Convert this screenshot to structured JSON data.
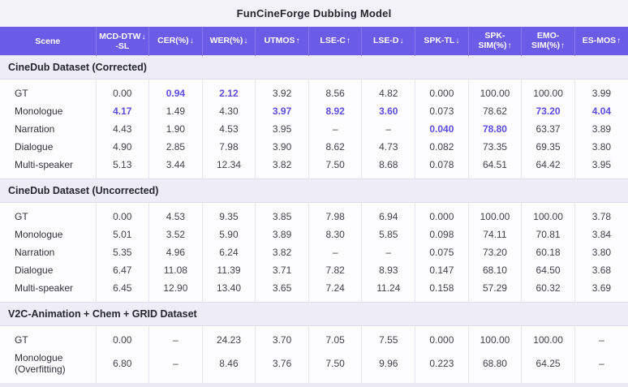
{
  "title": "FunCineForge Dubbing Model",
  "colors": {
    "header_bg": "#6B5CE8",
    "header_separator": "#8578EE",
    "header_text": "#FFFFFF",
    "accent_highlight": "#5C4CE2",
    "section_band_bg": "#EEEDF5",
    "title_bar_bg": "#F3F2F8",
    "body_text": "#41414C",
    "cell_bg": "#FDFDFF",
    "column_separator": "#E9E7F3",
    "page_bg": "#ECEBF5"
  },
  "chart_data": {
    "type": "table",
    "title": "FunCineForge Dubbing Model",
    "legend_note": "down arrow = lower is better, up arrow = higher is better; bold purple values = best/highlighted results",
    "columns": [
      {
        "id": "scene",
        "label": "Scene",
        "sub": "",
        "arrow": ""
      },
      {
        "id": "mcd-dtw-sl",
        "label": "MCD-DTW",
        "sub": "-SL",
        "arrow": "↓"
      },
      {
        "id": "cer",
        "label": "CER(%)",
        "sub": "",
        "arrow": "↓"
      },
      {
        "id": "wer",
        "label": "WER(%)",
        "sub": "",
        "arrow": "↓"
      },
      {
        "id": "utmos",
        "label": "UTMOS",
        "sub": "",
        "arrow": "↑"
      },
      {
        "id": "lse-c",
        "label": "LSE-C",
        "sub": "",
        "arrow": "↑"
      },
      {
        "id": "lse-d",
        "label": "LSE-D",
        "sub": "",
        "arrow": "↓"
      },
      {
        "id": "spk-tl",
        "label": "SPK-TL",
        "sub": "",
        "arrow": "↓"
      },
      {
        "id": "spk-sim",
        "label": "SPK-SIM(%)",
        "sub": "",
        "arrow": "↑"
      },
      {
        "id": "emo-sim",
        "label": "EMO-SIM(%)",
        "sub": "",
        "arrow": "↑"
      },
      {
        "id": "es-mos",
        "label": "ES-MOS",
        "sub": "",
        "arrow": "↑"
      }
    ],
    "sections": [
      {
        "header": "CineDub Dataset (Corrected)",
        "rows": [
          {
            "scene": "GT",
            "values": [
              "0.00",
              "0.94",
              "2.12",
              "3.92",
              "8.56",
              "4.82",
              "0.000",
              "100.00",
              "100.00",
              "3.99"
            ],
            "bold": [
              1,
              2
            ]
          },
          {
            "scene": "Monologue",
            "values": [
              "4.17",
              "1.49",
              "4.30",
              "3.97",
              "8.92",
              "3.60",
              "0.073",
              "78.62",
              "73.20",
              "4.04"
            ],
            "bold": [
              0,
              3,
              4,
              5,
              8,
              9
            ]
          },
          {
            "scene": "Narration",
            "values": [
              "4.43",
              "1.90",
              "4.53",
              "3.95",
              "–",
              "–",
              "0.040",
              "78.80",
              "63.37",
              "3.89"
            ],
            "bold": [
              6,
              7
            ]
          },
          {
            "scene": "Dialogue",
            "values": [
              "4.90",
              "2.85",
              "7.98",
              "3.90",
              "8.62",
              "4.73",
              "0.082",
              "73.35",
              "69.35",
              "3.80"
            ],
            "bold": []
          },
          {
            "scene": "Multi-speaker",
            "values": [
              "5.13",
              "3.44",
              "12.34",
              "3.82",
              "7.50",
              "8.68",
              "0.078",
              "64.51",
              "64.42",
              "3.95"
            ],
            "bold": []
          }
        ]
      },
      {
        "header": "CineDub Dataset (Uncorrected)",
        "rows": [
          {
            "scene": "GT",
            "values": [
              "0.00",
              "4.53",
              "9.35",
              "3.85",
              "7.98",
              "6.94",
              "0.000",
              "100.00",
              "100.00",
              "3.78"
            ],
            "bold": []
          },
          {
            "scene": "Monologue",
            "values": [
              "5.01",
              "3.52",
              "5.90",
              "3.89",
              "8.30",
              "5.85",
              "0.098",
              "74.11",
              "70.81",
              "3.84"
            ],
            "bold": []
          },
          {
            "scene": "Narration",
            "values": [
              "5.35",
              "4.96",
              "6.24",
              "3.82",
              "–",
              "–",
              "0.075",
              "73.20",
              "60.18",
              "3.80"
            ],
            "bold": []
          },
          {
            "scene": "Dialogue",
            "values": [
              "6.47",
              "11.08",
              "11.39",
              "3.71",
              "7.82",
              "8.93",
              "0.147",
              "68.10",
              "64.50",
              "3.68"
            ],
            "bold": []
          },
          {
            "scene": "Multi-speaker",
            "values": [
              "6.45",
              "12.90",
              "13.40",
              "3.65",
              "7.24",
              "11.24",
              "0.158",
              "57.29",
              "60.32",
              "3.69"
            ],
            "bold": []
          }
        ]
      },
      {
        "header": "V2C-Animation + Chem + GRID Dataset",
        "rows": [
          {
            "scene": "GT",
            "values": [
              "0.00",
              "–",
              "24.23",
              "3.70",
              "7.05",
              "7.55",
              "0.000",
              "100.00",
              "100.00",
              "–"
            ],
            "bold": []
          },
          {
            "scene": "Monologue (Overfitting)",
            "values": [
              "6.80",
              "–",
              "8.46",
              "3.76",
              "7.50",
              "9.96",
              "0.223",
              "68.80",
              "64.25",
              "–"
            ],
            "bold": []
          }
        ]
      }
    ]
  }
}
